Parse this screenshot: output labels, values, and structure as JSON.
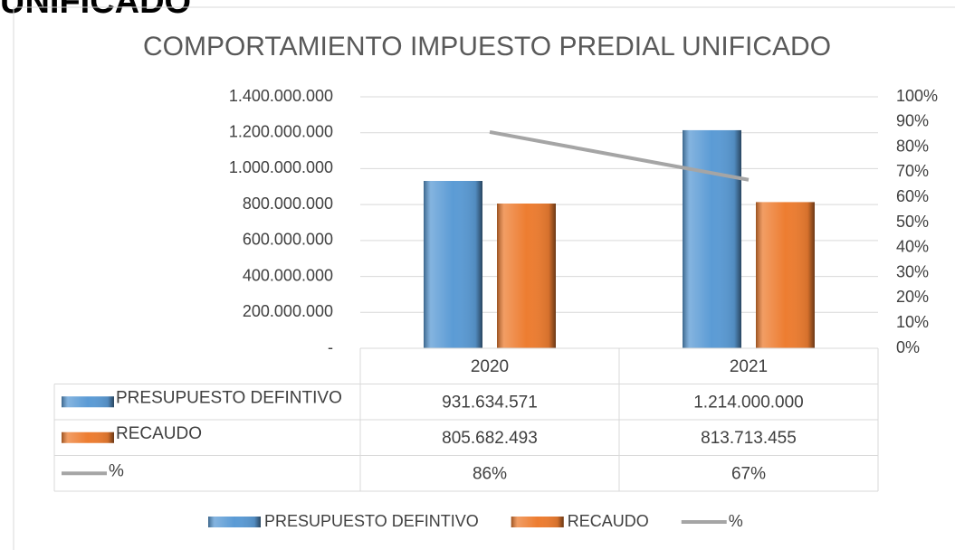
{
  "heading": "UNIFICADO",
  "chart_data": {
    "type": "bar",
    "title": "COMPORTAMIENTO IMPUESTO PREDIAL UNIFICADO",
    "categories": [
      "2020",
      "2021"
    ],
    "series": [
      {
        "name": "PRESUPUESTO DEFINTIVO",
        "color": "#5b9bd5",
        "values": [
          931634571,
          1214000000
        ],
        "value_labels": [
          "931.634.571",
          "1.214.000.000"
        ]
      },
      {
        "name": "RECAUDO",
        "color": "#ed7d31",
        "values": [
          805682493,
          813713455
        ],
        "value_labels": [
          "805.682.493",
          "813.713.455"
        ]
      },
      {
        "name": "%",
        "color": "#a5a5a5",
        "type": "line",
        "axis": "y2",
        "values": [
          86,
          67
        ],
        "value_labels": [
          "86%",
          "67%"
        ]
      }
    ],
    "ylim": [
      0,
      1400000000
    ],
    "yticks": [
      {
        "value": 0,
        "label": "-"
      },
      {
        "value": 200000000,
        "label": "200.000.000"
      },
      {
        "value": 400000000,
        "label": "400.000.000"
      },
      {
        "value": 600000000,
        "label": "600.000.000"
      },
      {
        "value": 800000000,
        "label": "800.000.000"
      },
      {
        "value": 1000000000,
        "label": "1.000.000.000"
      },
      {
        "value": 1200000000,
        "label": "1.200.000.000"
      },
      {
        "value": 1400000000,
        "label": "1.400.000.000"
      }
    ],
    "y2lim": [
      0,
      100
    ],
    "y2ticks": [
      {
        "value": 0,
        "label": "0%"
      },
      {
        "value": 10,
        "label": "10%"
      },
      {
        "value": 20,
        "label": "20%"
      },
      {
        "value": 30,
        "label": "30%"
      },
      {
        "value": 40,
        "label": "40%"
      },
      {
        "value": 50,
        "label": "50%"
      },
      {
        "value": 60,
        "label": "60%"
      },
      {
        "value": 70,
        "label": "70%"
      },
      {
        "value": 80,
        "label": "80%"
      },
      {
        "value": 90,
        "label": "90%"
      },
      {
        "value": 100,
        "label": "100%"
      }
    ],
    "grid": true
  }
}
